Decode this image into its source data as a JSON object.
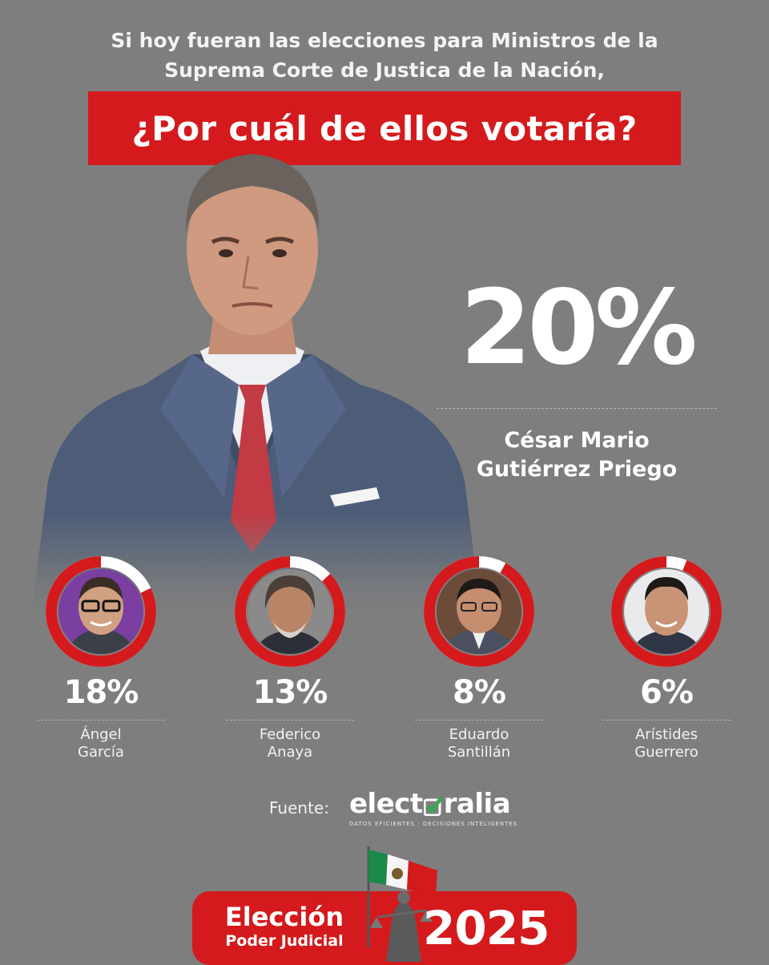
{
  "intro": {
    "line1": "Si hoy fueran las elecciones para Ministros de la",
    "line2": "Suprema Corte de Justica de la Nación,"
  },
  "question": "¿Por cuál de ellos votaría?",
  "lead": {
    "percent": "20%",
    "name_line1": "César Mario",
    "name_line2": "Gutiérrez Priego",
    "share": 0.2
  },
  "candidates": [
    {
      "percent": "18%",
      "name_line1": "Ángel",
      "name_line2": "García",
      "share": 0.18
    },
    {
      "percent": "13%",
      "name_line1": "Federico",
      "name_line2": "Anaya",
      "share": 0.13
    },
    {
      "percent": "8%",
      "name_line1": "Eduardo",
      "name_line2": "Santillán",
      "share": 0.08
    },
    {
      "percent": "6%",
      "name_line1": "Arístides",
      "name_line2": "Guerrero",
      "share": 0.06
    }
  ],
  "source": {
    "label": "Fuente:",
    "logo_text_1": "elect",
    "logo_text_2": "ralia",
    "tagline": "DATOS EFICIENTES · DECISIONES INTELIGENTES"
  },
  "footer": {
    "line1": "Elección",
    "line2": "Poder Judicial",
    "year": "2025"
  },
  "colors": {
    "background": "#7e7e7e",
    "accent_red": "#d41a1c",
    "logo_green": "#3aa657"
  },
  "icons": [
    "mexico-flag-icon",
    "justice-statue-icon",
    "checkmark-icon"
  ]
}
